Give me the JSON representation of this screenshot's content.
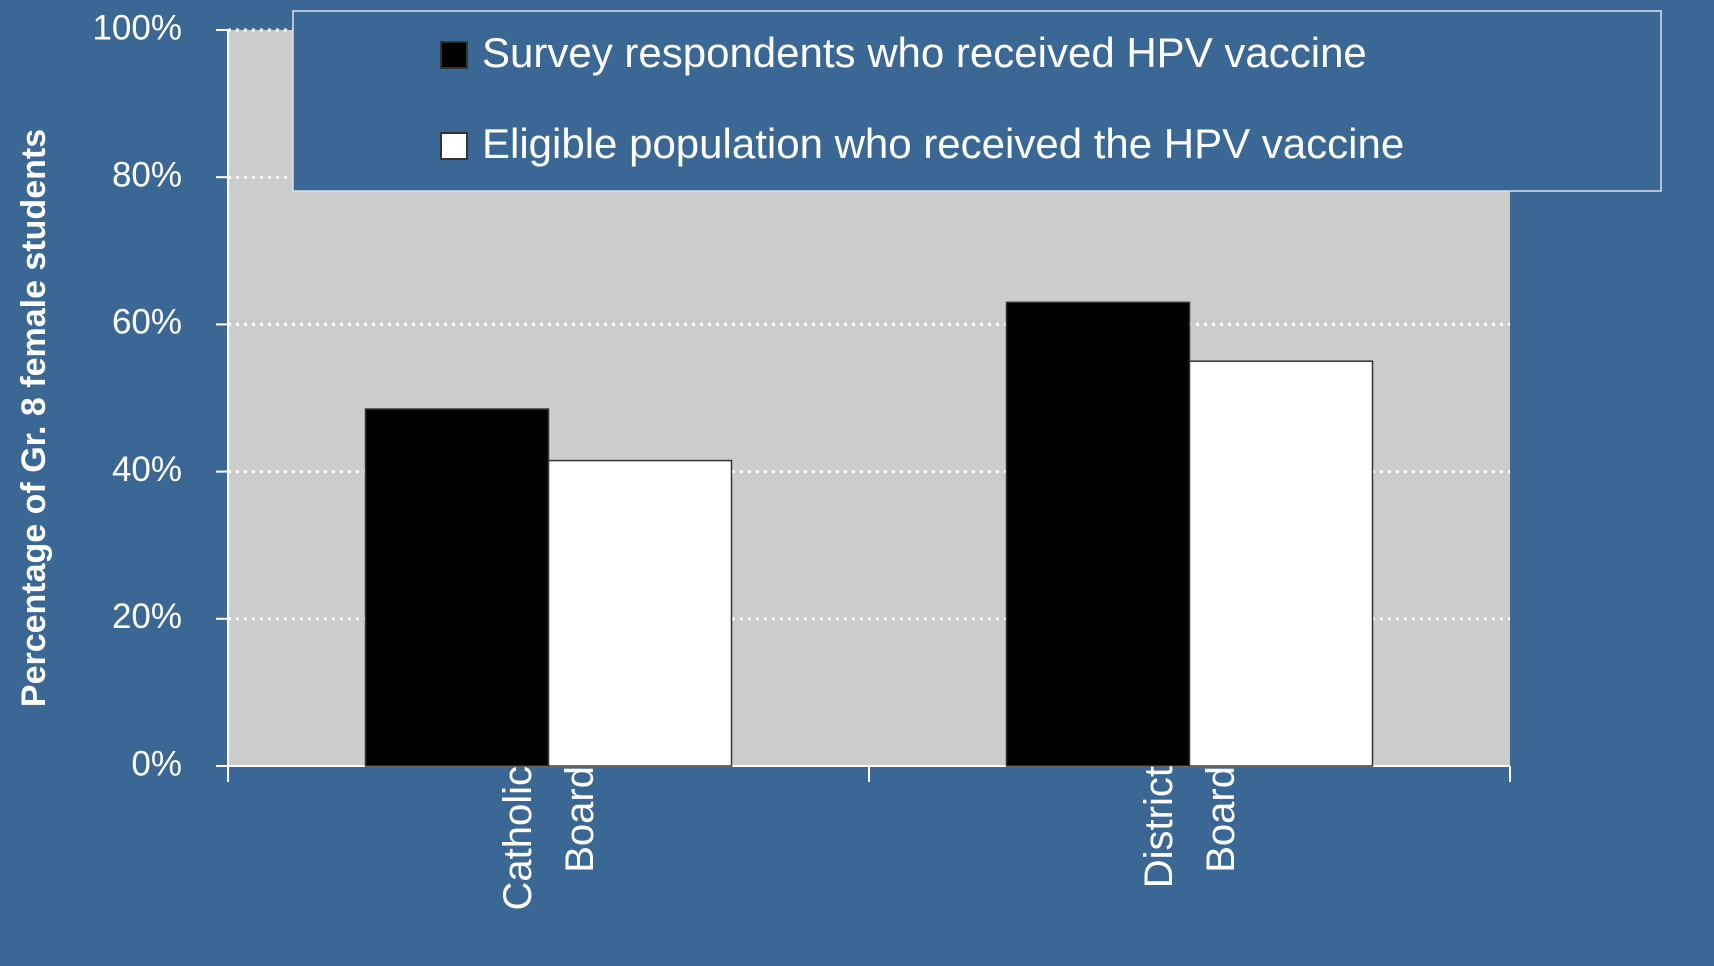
{
  "chart_data": {
    "type": "bar",
    "y_label": "Percentage of Gr. 8 female students",
    "categories": [
      "Catholic Board",
      "District Board"
    ],
    "series": [
      {
        "name": "Survey respondents who received HPV vaccine",
        "color": "#000000",
        "values": [
          48.5,
          63
        ]
      },
      {
        "name": "Eligible population who received the HPV vaccine",
        "color": "#ffffff",
        "values": [
          41.5,
          55
        ]
      }
    ],
    "ylim": [
      0,
      100
    ],
    "yticks": [
      {
        "value": 0,
        "label": "0%"
      },
      {
        "value": 20,
        "label": "20%"
      },
      {
        "value": 40,
        "label": "40%"
      },
      {
        "value": 60,
        "label": "60%"
      },
      {
        "value": 80,
        "label": "80%"
      },
      {
        "value": 100,
        "label": "100%"
      }
    ],
    "grid": true,
    "legend": "top"
  }
}
